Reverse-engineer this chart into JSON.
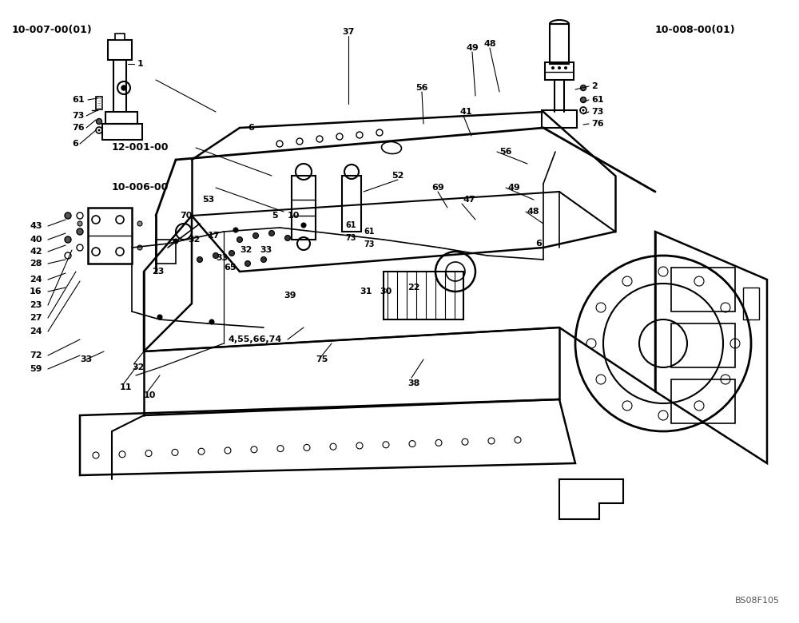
{
  "title": "",
  "background_color": "#ffffff",
  "line_color": "#000000",
  "text_color": "#000000",
  "fig_width": 10.0,
  "fig_height": 7.8,
  "dpi": 100,
  "watermark": "BS08F105",
  "ref_labels": {
    "top_left": "10-007-00(01)",
    "top_right": "10-008-00(01)",
    "mid_left_1": "12-001-00",
    "mid_left_2": "10-006-00"
  },
  "part_numbers": {
    "tl_group": [
      "1",
      "6",
      "61",
      "73",
      "76"
    ],
    "tr_group": [
      "2",
      "6",
      "61",
      "73",
      "76"
    ],
    "main": [
      "4,55,66,74",
      "5",
      "10",
      "11",
      "16",
      "17",
      "22",
      "23",
      "24",
      "27",
      "28",
      "30",
      "31",
      "32",
      "33",
      "37",
      "38",
      "39",
      "40",
      "41",
      "42",
      "43",
      "47",
      "48",
      "49",
      "52",
      "53",
      "56",
      "59",
      "65",
      "69",
      "70",
      "72",
      "75"
    ]
  }
}
